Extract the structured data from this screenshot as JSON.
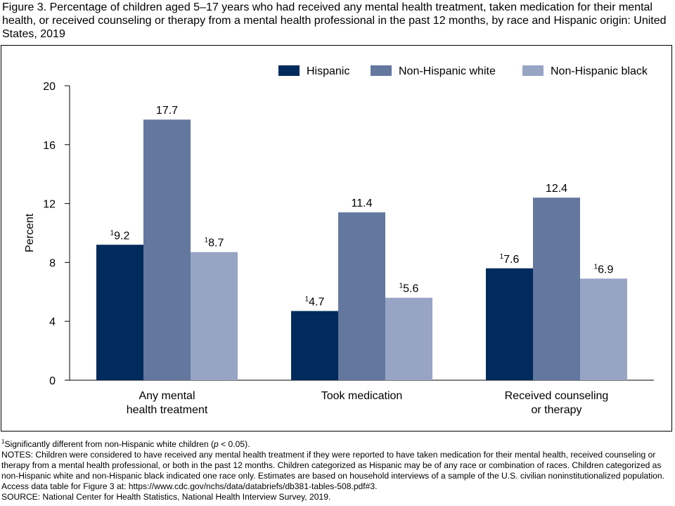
{
  "title": "Figure 3. Percentage of children aged 5–17 years who had received any mental health treatment, taken medication for their mental health, or received counseling or therapy from a mental health professional in the past 12 months, by race and Hispanic origin: United States, 2019",
  "chart_data": {
    "type": "bar",
    "categories": [
      [
        "Any mental",
        "health treatment"
      ],
      [
        "Took medication"
      ],
      [
        "Received counseling",
        "or therapy"
      ]
    ],
    "series": [
      {
        "name": "Hispanic",
        "color": "#002b5c",
        "values": [
          9.2,
          4.7,
          7.6
        ],
        "labels": [
          "9.2",
          "4.7",
          "7.6"
        ],
        "flags": [
          "1",
          "1",
          "1"
        ]
      },
      {
        "name": "Non-Hispanic white",
        "color": "#63779f",
        "values": [
          17.7,
          11.4,
          12.4
        ],
        "labels": [
          "17.7",
          "11.4",
          "12.4"
        ],
        "flags": [
          "",
          "",
          ""
        ]
      },
      {
        "name": "Non-Hispanic black",
        "color": "#97a4c4",
        "values": [
          8.7,
          5.6,
          6.9
        ],
        "labels": [
          "8.7",
          "5.6",
          "6.9"
        ],
        "flags": [
          "1",
          "1",
          "1"
        ]
      }
    ],
    "ylabel": "Percent",
    "xlabel": "",
    "ylim": [
      0,
      20
    ],
    "yticks": [
      "0",
      "4",
      "8",
      "12",
      "16",
      "20"
    ],
    "grid": false,
    "legend_position": "top-right"
  },
  "notes": {
    "footnote_marker": "1",
    "footnote_text_a": "Significantly different from non-Hispanic white children (",
    "footnote_p": "p",
    "footnote_text_b": " < 0.05).",
    "notes_text": "NOTES: Children were considered to have received any mental health treatment if they were reported to have taken medication for their mental health, received counseling or therapy from a mental health professional, or both in the past 12 months. Children categorized as Hispanic may be of any race or combination of races. Children categorized as non-Hispanic white and non-Hispanic black indicated one race only. Estimates are based on household interviews of a sample of the U.S. civilian noninstitutionalized population. Access data table for Figure 3 at: https://www.cdc.gov/nchs/data/databriefs/db381-tables-508.pdf#3.",
    "source_text": "SOURCE: National Center for Health Statistics, National Health Interview Survey, 2019."
  }
}
